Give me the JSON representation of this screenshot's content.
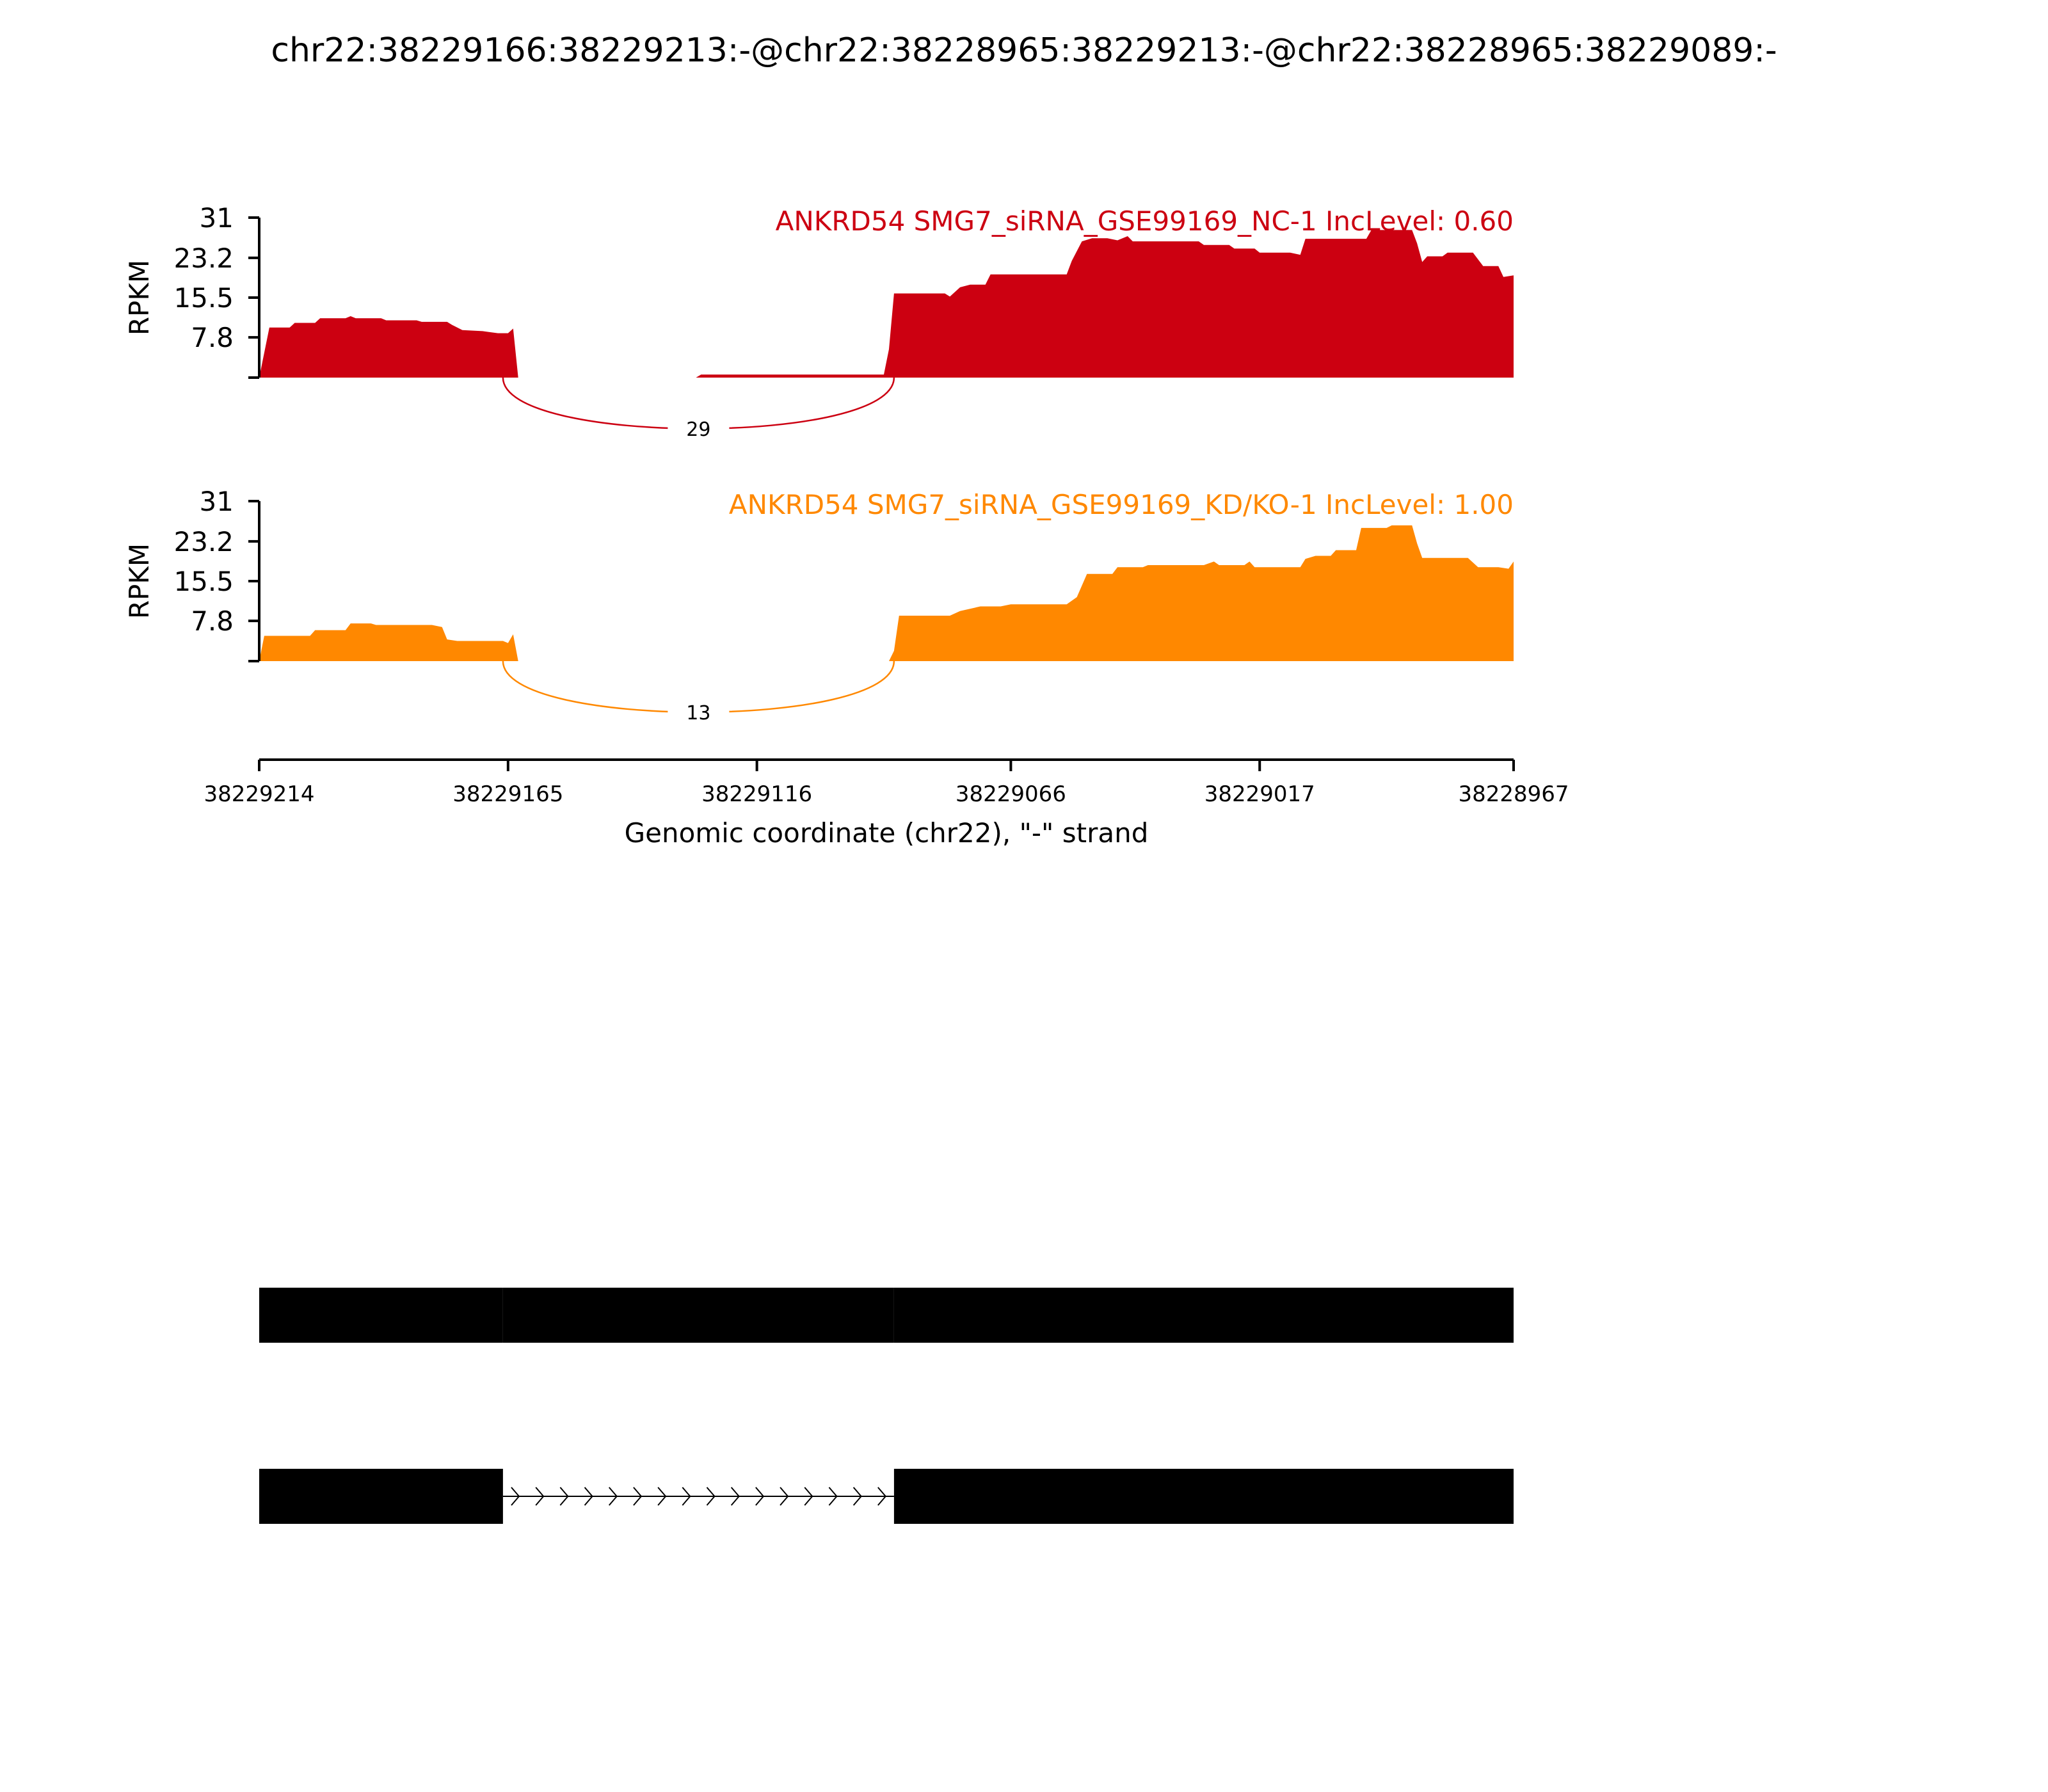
{
  "title": "chr22:38229166:38229213:-@chr22:38228965:38229213:-@chr22:38228965:38229089:-",
  "chart_data": {
    "type": "area",
    "title": "chr22:38229166:38229213:-@chr22:38228965:38229213:-@chr22:38228965:38229089:-",
    "xlabel": "Genomic coordinate (chr22), \"-\" strand",
    "xlim": [
      38229214,
      38228967
    ],
    "x_ticks": [
      "38229214",
      "38229165",
      "38229116",
      "38229066",
      "38229017",
      "38228967"
    ],
    "ylabel": "RPKM",
    "y_ticks": [
      "7.8",
      "15.5",
      "23.2",
      "31"
    ],
    "ylim": [
      0,
      31
    ],
    "tracks": [
      {
        "label": "ANKRD54 SMG7_siRNA_GSE99169_NC-1 IncLevel: 0.60",
        "color": "#cc0011",
        "profile": [
          [
            38229214,
            0
          ],
          [
            38229212,
            9.7
          ],
          [
            38229208,
            9.7
          ],
          [
            38229207,
            10.6
          ],
          [
            38229203,
            10.6
          ],
          [
            38229202,
            11.5
          ],
          [
            38229197,
            11.5
          ],
          [
            38229196,
            11.9
          ],
          [
            38229195,
            11.5
          ],
          [
            38229190,
            11.5
          ],
          [
            38229189,
            11.1
          ],
          [
            38229183,
            11.1
          ],
          [
            38229182,
            10.8
          ],
          [
            38229177,
            10.8
          ],
          [
            38229176,
            10.2
          ],
          [
            38229174,
            9.2
          ],
          [
            38229170,
            9.0
          ],
          [
            38229167,
            8.6
          ],
          [
            38229165,
            8.6
          ],
          [
            38229164,
            9.5
          ],
          [
            38229163,
            0
          ],
          [
            38229128,
            0
          ],
          [
            38229127,
            0.6
          ],
          [
            38229091,
            0.6
          ],
          [
            38229090,
            5.5
          ],
          [
            38229089,
            16.3
          ],
          [
            38229079,
            16.3
          ],
          [
            38229078,
            15.7
          ],
          [
            38229076,
            17.5
          ],
          [
            38229074,
            18.0
          ],
          [
            38229071,
            18.0
          ],
          [
            38229070,
            20.0
          ],
          [
            38229055,
            20.0
          ],
          [
            38229054,
            22.6
          ],
          [
            38229052,
            26.4
          ],
          [
            38229050,
            27.0
          ],
          [
            38229047,
            27.0
          ],
          [
            38229045,
            26.6
          ],
          [
            38229043,
            27.4
          ],
          [
            38229042,
            26.4
          ],
          [
            38229029,
            26.4
          ],
          [
            38229028,
            25.7
          ],
          [
            38229023,
            25.7
          ],
          [
            38229022,
            25.0
          ],
          [
            38229018,
            25.0
          ],
          [
            38229017,
            24.2
          ],
          [
            38229011,
            24.2
          ],
          [
            38229009,
            23.8
          ],
          [
            38229008,
            26.9
          ],
          [
            38228996,
            26.9
          ],
          [
            38228995,
            28.6
          ],
          [
            38228987,
            28.6
          ],
          [
            38228986,
            26.0
          ],
          [
            38228985,
            22.4
          ],
          [
            38228984,
            23.5
          ],
          [
            38228981,
            23.5
          ],
          [
            38228980,
            24.2
          ],
          [
            38228975,
            24.2
          ],
          [
            38228973,
            21.6
          ],
          [
            38228970,
            21.6
          ],
          [
            38228969,
            19.5
          ],
          [
            38228967,
            19.8
          ],
          [
            38228967,
            0
          ]
        ],
        "junctions": [
          {
            "from": 38229166,
            "to": 38229089,
            "count": "29"
          }
        ]
      },
      {
        "label": "ANKRD54 SMG7_siRNA_GSE99169_KD/KO-1 IncLevel: 1.00",
        "color": "#ff8800",
        "profile": [
          [
            38229214,
            0
          ],
          [
            38229213,
            4.9
          ],
          [
            38229204,
            4.9
          ],
          [
            38229203,
            6.0
          ],
          [
            38229197,
            6.0
          ],
          [
            38229196,
            7.3
          ],
          [
            38229192,
            7.3
          ],
          [
            38229191,
            7.0
          ],
          [
            38229180,
            7.0
          ],
          [
            38229178,
            6.6
          ],
          [
            38229177,
            4.2
          ],
          [
            38229175,
            3.9
          ],
          [
            38229166,
            3.9
          ],
          [
            38229165,
            3.5
          ],
          [
            38229164,
            5.2
          ],
          [
            38229163,
            0
          ],
          [
            38229090,
            0
          ],
          [
            38229089,
            2.0
          ],
          [
            38229088,
            8.8
          ],
          [
            38229078,
            8.8
          ],
          [
            38229076,
            9.7
          ],
          [
            38229072,
            10.6
          ],
          [
            38229068,
            10.6
          ],
          [
            38229066,
            11.0
          ],
          [
            38229055,
            11.0
          ],
          [
            38229053,
            12.4
          ],
          [
            38229051,
            16.9
          ],
          [
            38229046,
            16.9
          ],
          [
            38229045,
            18.2
          ],
          [
            38229040,
            18.2
          ],
          [
            38229039,
            18.6
          ],
          [
            38229028,
            18.6
          ],
          [
            38229026,
            19.3
          ],
          [
            38229025,
            18.6
          ],
          [
            38229020,
            18.6
          ],
          [
            38229019,
            19.3
          ],
          [
            38229018,
            18.2
          ],
          [
            38229009,
            18.2
          ],
          [
            38229008,
            19.8
          ],
          [
            38229006,
            20.4
          ],
          [
            38229003,
            20.4
          ],
          [
            38229002,
            21.5
          ],
          [
            38228998,
            21.5
          ],
          [
            38228997,
            25.8
          ],
          [
            38228992,
            25.8
          ],
          [
            38228991,
            26.3
          ],
          [
            38228987,
            26.3
          ],
          [
            38228986,
            22.8
          ],
          [
            38228985,
            20.0
          ],
          [
            38228976,
            20.0
          ],
          [
            38228974,
            18.2
          ],
          [
            38228970,
            18.2
          ],
          [
            38228968,
            17.9
          ],
          [
            38228967,
            19.3
          ],
          [
            38228967,
            0
          ]
        ],
        "junctions": [
          {
            "from": 38229166,
            "to": 38229089,
            "count": "13"
          }
        ]
      }
    ],
    "isoforms": [
      {
        "exons": [
          [
            38229214,
            38229166
          ],
          [
            38229166,
            38229089
          ],
          [
            38229089,
            38228967
          ]
        ]
      },
      {
        "exons": [
          [
            38229214,
            38229166
          ],
          [
            38229089,
            38228967
          ]
        ],
        "intron": [
          38229166,
          38229089
        ]
      }
    ]
  }
}
